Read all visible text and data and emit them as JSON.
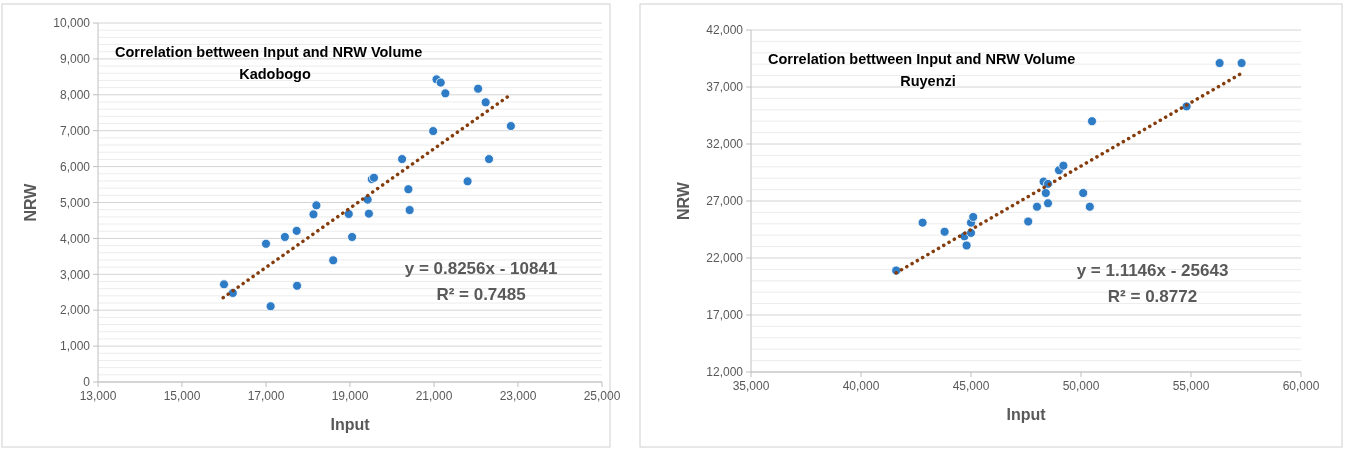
{
  "chart_data": [
    {
      "type": "scatter",
      "title": "Correlation bettween Input and NRW Volume",
      "subtitle": "Kadobogo",
      "xlabel": "Input",
      "ylabel": "NRW",
      "annotations": [
        "y = 0.8256x - 10841",
        "R² = 0.7485"
      ],
      "xlim": [
        13000,
        25000
      ],
      "xticks": [
        {
          "value": 13000,
          "label": "13,000"
        },
        {
          "value": 15000,
          "label": "15,000"
        },
        {
          "value": 17000,
          "label": "17,000"
        },
        {
          "value": 19000,
          "label": "19,000"
        },
        {
          "value": 21000,
          "label": "21,000"
        },
        {
          "value": 23000,
          "label": "23,000"
        },
        {
          "value": 25000,
          "label": "25,000"
        }
      ],
      "ylim": [
        0,
        10000
      ],
      "yticks": [
        0,
        {
          "value": 200,
          "label": null
        },
        {
          "value": 400,
          "label": null
        },
        {
          "value": 600,
          "label": null
        },
        {
          "value": 800,
          "label": null
        },
        {
          "value": 1000,
          "label": "1,000"
        },
        {
          "value": 1200,
          "label": null
        },
        {
          "value": 1400,
          "label": null
        },
        {
          "value": 1600,
          "label": null
        },
        {
          "value": 1800,
          "label": null
        },
        {
          "value": 2000,
          "label": "2,000"
        },
        {
          "value": 2200,
          "label": null
        },
        {
          "value": 2400,
          "label": null
        },
        {
          "value": 2600,
          "label": null
        },
        {
          "value": 2800,
          "label": null
        },
        {
          "value": 3000,
          "label": "3,000"
        },
        {
          "value": 3200,
          "label": null
        },
        {
          "value": 3400,
          "label": null
        },
        {
          "value": 3600,
          "label": null
        },
        {
          "value": 3800,
          "label": null
        },
        {
          "value": 4000,
          "label": "4,000"
        },
        {
          "value": 4200,
          "label": null
        },
        {
          "value": 4400,
          "label": null
        },
        {
          "value": 4600,
          "label": null
        },
        {
          "value": 4800,
          "label": null
        },
        {
          "value": 5000,
          "label": "5,000"
        },
        {
          "value": 5200,
          "label": null
        },
        {
          "value": 5400,
          "label": null
        },
        {
          "value": 5600,
          "label": null
        },
        {
          "value": 5800,
          "label": null
        },
        {
          "value": 6000,
          "label": "6,000"
        },
        {
          "value": 6200,
          "label": null
        },
        {
          "value": 6400,
          "label": null
        },
        {
          "value": 6600,
          "label": null
        },
        {
          "value": 6800,
          "label": null
        },
        {
          "value": 7000,
          "label": "7,000"
        },
        {
          "value": 7200,
          "label": null
        },
        {
          "value": 7400,
          "label": null
        },
        {
          "value": 7600,
          "label": null
        },
        {
          "value": 7800,
          "label": null
        },
        {
          "value": 8000,
          "label": "8,000"
        },
        {
          "value": 8200,
          "label": null
        },
        {
          "value": 8400,
          "label": null
        },
        {
          "value": 8600,
          "label": null
        },
        {
          "value": 8800,
          "label": null
        },
        {
          "value": 9000,
          "label": "9,000"
        },
        {
          "value": 9200,
          "label": null
        },
        {
          "value": 9400,
          "label": null
        },
        {
          "value": 9600,
          "label": null
        },
        {
          "value": 9800,
          "label": null
        },
        {
          "value": 10000,
          "label": "10,000"
        }
      ],
      "grid": "y",
      "series": [
        {
          "color": "#2e7bc6",
          "marker": "circle",
          "x": [
            16000,
            16210,
            17110,
            17000,
            17450,
            17730,
            17740,
            18130,
            18200,
            18600,
            18970,
            19050,
            19420,
            19450,
            19520,
            19570,
            20240,
            20390,
            20420,
            20980,
            21060,
            21160,
            21270,
            21800,
            22050,
            22230,
            22310,
            22830
          ],
          "values": [
            2720,
            2480,
            2110,
            3850,
            4040,
            4210,
            2680,
            4670,
            4920,
            3390,
            4680,
            4040,
            5080,
            4690,
            5650,
            5690,
            6210,
            5370,
            4790,
            6990,
            8430,
            8340,
            8040,
            5590,
            8170,
            7790,
            6210,
            7130
          ]
        },
        {
          "type": "line",
          "color": "#843c0c",
          "line_style": "dotted",
          "x": [
            15980,
            22830
          ],
          "values": [
            2350,
            8010
          ]
        }
      ]
    },
    {
      "type": "scatter",
      "title": "Correlation bettween Input and NRW Volume",
      "subtitle": "Ruyenzi",
      "xlabel": "Input",
      "ylabel": "NRW",
      "annotations": [
        "y = 1.1146x - 25643",
        "R² = 0.8772"
      ],
      "xlim": [
        35000,
        60000
      ],
      "xticks": [
        {
          "value": 35000,
          "label": "35,000"
        },
        {
          "value": 40000,
          "label": "40,000"
        },
        {
          "value": 45000,
          "label": "45,000"
        },
        {
          "value": 50000,
          "label": "50,000"
        },
        {
          "value": 55000,
          "label": "55,000"
        },
        {
          "value": 60000,
          "label": "60,000"
        }
      ],
      "ylim": [
        12000,
        42000
      ],
      "yticks": [
        {
          "value": 12000,
          "label": "12,000"
        },
        {
          "value": 13000,
          "label": null
        },
        {
          "value": 14000,
          "label": null
        },
        {
          "value": 15000,
          "label": null
        },
        {
          "value": 16000,
          "label": null
        },
        {
          "value": 17000,
          "label": "17,000"
        },
        {
          "value": 18000,
          "label": null
        },
        {
          "value": 19000,
          "label": null
        },
        {
          "value": 20000,
          "label": null
        },
        {
          "value": 21000,
          "label": null
        },
        {
          "value": 22000,
          "label": "22,000"
        },
        {
          "value": 23000,
          "label": null
        },
        {
          "value": 24000,
          "label": null
        },
        {
          "value": 25000,
          "label": null
        },
        {
          "value": 26000,
          "label": null
        },
        {
          "value": 27000,
          "label": "27,000"
        },
        {
          "value": 28000,
          "label": null
        },
        {
          "value": 29000,
          "label": null
        },
        {
          "value": 30000,
          "label": null
        },
        {
          "value": 31000,
          "label": null
        },
        {
          "value": 32000,
          "label": "32,000"
        },
        {
          "value": 33000,
          "label": null
        },
        {
          "value": 34000,
          "label": null
        },
        {
          "value": 35000,
          "label": null
        },
        {
          "value": 36000,
          "label": null
        },
        {
          "value": 37000,
          "label": "37,000"
        },
        {
          "value": 38000,
          "label": null
        },
        {
          "value": 39000,
          "label": null
        },
        {
          "value": 40000,
          "label": null
        },
        {
          "value": 41000,
          "label": null
        },
        {
          "value": 42000,
          "label": "42,000"
        }
      ],
      "grid": "y",
      "series": [
        {
          "color": "#2e7bc6",
          "marker": "circle",
          "x": [
            41600,
            42800,
            43800,
            44700,
            44800,
            45000,
            45000,
            45100,
            47600,
            48000,
            48300,
            48400,
            48500,
            48500,
            49000,
            49200,
            50100,
            50400,
            50500,
            54800,
            56300,
            57300
          ],
          "values": [
            20900,
            25100,
            24300,
            23900,
            23100,
            24200,
            25100,
            25600,
            25200,
            26500,
            28700,
            27700,
            26800,
            28500,
            29700,
            30100,
            27700,
            26500,
            34000,
            35300,
            39100,
            39100
          ]
        },
        {
          "type": "line",
          "color": "#843c0c",
          "line_style": "dotted",
          "x": [
            41600,
            57300
          ],
          "values": [
            20700,
            38200
          ]
        }
      ]
    }
  ]
}
